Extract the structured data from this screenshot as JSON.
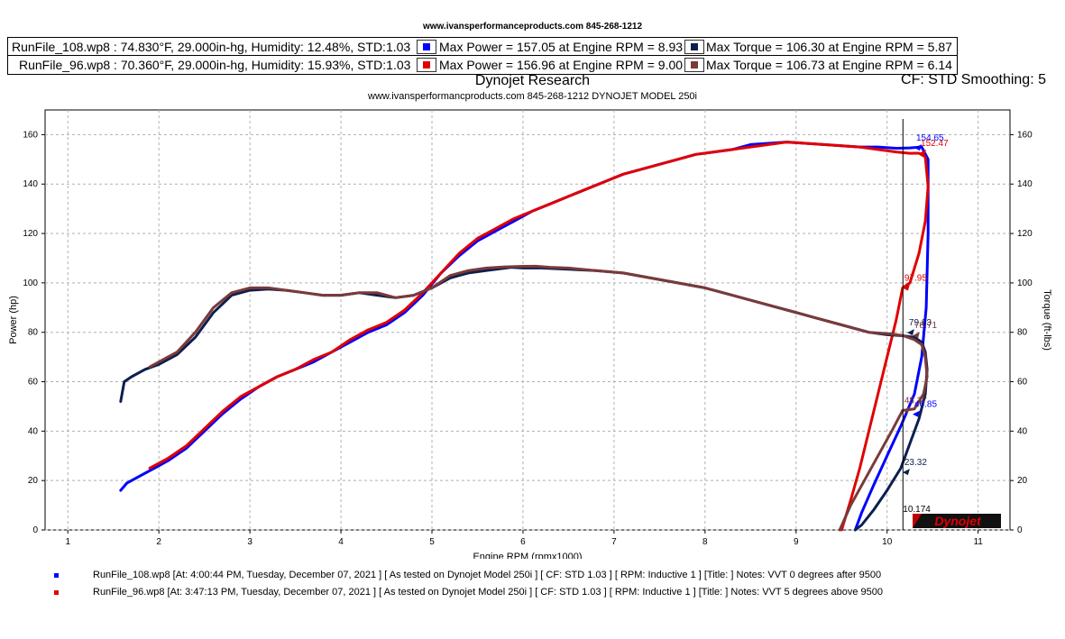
{
  "header": {
    "website": "www.ivansperformanceproducts.com  845-268-1212"
  },
  "legend": {
    "row1": {
      "run": "RunFile_108.wp8 : 74.830°F, 29.000in-hg, Humidity: 12.48%, STD:1.03",
      "power": "Max Power = 157.05 at Engine RPM = 8.93",
      "torque": "Max Torque = 106.30 at Engine RPM = 5.87",
      "power_color": "#0000ff",
      "torque_color": "#0d1f4d"
    },
    "row2": {
      "run": "RunFile_96.wp8 : 70.360°F, 29.000in-hg, Humidity: 15.93%, STD:1.03",
      "power": "Max Power = 156.96 at Engine RPM = 9.00",
      "torque": "Max Torque = 106.73 at Engine RPM = 6.14",
      "power_color": "#e00000",
      "torque_color": "#7a3a3a"
    }
  },
  "chart_title": "Dynojet Research",
  "chart_subtitle": "www.ivansperformancproducts.com  845-268-1212    DYNOJET MODEL 250i",
  "cf_label": "CF: STD Smoothing: 5",
  "footer": {
    "row1": "RunFile_108.wp8 [At: 4:00:44 PM, Tuesday, December 07, 2021 ] [ As tested on Dynojet Model 250i ] [ CF: STD 1.03 ] [ RPM: Inductive 1 ] [Title: ]  Notes: VVT 0 degrees after 9500",
    "row2": "RunFile_96.wp8 [At: 3:47:13 PM, Tuesday, December 07, 2021 ] [ As tested on Dynojet Model 250i ] [ CF: STD 1.03 ] [ RPM: Inductive 1 ] [Title: ]  Notes: VVT 5 degrees above 9500",
    "row1_color": "#0000ff",
    "row2_color": "#e00000"
  },
  "logo_text": "Dynojet",
  "chart_data": {
    "type": "line",
    "title": "Dynojet Research",
    "xlabel": "Engine RPM (rpmx1000)",
    "ylabel": "Power (hp)",
    "y2label": "Torque (ft-lbs)",
    "xlim": [
      0.75,
      11.35
    ],
    "ylim": [
      0,
      170
    ],
    "xticks": [
      "1",
      "2",
      "3",
      "4",
      "5",
      "6",
      "7",
      "8",
      "9",
      "10",
      "11"
    ],
    "yticks": [
      "0",
      "20",
      "40",
      "60",
      "80",
      "100",
      "120",
      "140",
      "160"
    ],
    "cursor_x": 10.174,
    "cursor_label": "10.174",
    "grid": true,
    "series": [
      {
        "name": "RunFile_108.wp8 Power",
        "color": "#0000ff",
        "x": [
          1.58,
          1.65,
          1.8,
          1.95,
          2.1,
          2.3,
          2.5,
          2.7,
          2.9,
          3.1,
          3.3,
          3.5,
          3.7,
          3.9,
          4.1,
          4.3,
          4.5,
          4.7,
          4.9,
          5.1,
          5.3,
          5.5,
          5.7,
          5.9,
          6.1,
          6.3,
          6.5,
          6.7,
          6.9,
          7.1,
          7.3,
          7.5,
          7.7,
          7.9,
          8.1,
          8.3,
          8.5,
          8.7,
          8.9,
          9.1,
          9.3,
          9.5,
          9.7,
          9.9,
          10.1,
          10.25,
          10.38,
          10.45,
          10.45,
          10.43,
          10.38,
          10.3,
          10.15,
          10.0,
          9.85,
          9.72,
          9.65
        ],
        "y": [
          16,
          19,
          22,
          25,
          28,
          33,
          40,
          47,
          53,
          58,
          62,
          65,
          68,
          72,
          76,
          80,
          83,
          88,
          95,
          104,
          111,
          117,
          121,
          125,
          129,
          132,
          135,
          138,
          141,
          144,
          146,
          148,
          150,
          152,
          153,
          154,
          156,
          156.5,
          157,
          156.5,
          156,
          155.5,
          155,
          155,
          154.5,
          154.65,
          155,
          150,
          120,
          90,
          70,
          55,
          42,
          30,
          18,
          7,
          0
        ]
      },
      {
        "name": "RunFile_96.wp8 Power",
        "color": "#e00000",
        "x": [
          1.9,
          2.1,
          2.3,
          2.5,
          2.7,
          2.9,
          3.1,
          3.3,
          3.5,
          3.7,
          3.9,
          4.1,
          4.3,
          4.5,
          4.7,
          4.9,
          5.1,
          5.3,
          5.5,
          5.7,
          5.9,
          6.1,
          6.3,
          6.5,
          6.7,
          6.9,
          7.1,
          7.3,
          7.5,
          7.7,
          7.9,
          8.1,
          8.3,
          8.5,
          8.7,
          8.9,
          9.1,
          9.3,
          9.5,
          9.7,
          9.9,
          10.1,
          10.25,
          10.35,
          10.42,
          10.45,
          10.42,
          10.35,
          10.25,
          10.17,
          10.1,
          10.0,
          9.9,
          9.8,
          9.7,
          9.6,
          9.5
        ],
        "y": [
          25,
          29,
          34,
          41,
          48,
          54,
          58,
          62,
          65,
          69,
          72,
          77,
          81,
          84,
          89,
          96,
          104,
          112,
          118,
          122,
          126,
          129,
          132,
          135,
          138,
          141,
          144,
          146,
          148,
          150,
          152,
          153,
          154,
          155,
          156,
          156.96,
          156.5,
          156,
          155.5,
          155,
          154,
          153,
          152.47,
          152.5,
          151,
          139,
          125,
          112,
          100,
          97.95,
          85,
          70,
          55,
          40,
          25,
          12,
          0
        ]
      },
      {
        "name": "RunFile_108.wp8 Torque",
        "color": "#0d1f4d",
        "x": [
          1.58,
          1.62,
          1.7,
          1.85,
          2.0,
          2.2,
          2.4,
          2.6,
          2.8,
          3.0,
          3.2,
          3.4,
          3.6,
          3.8,
          4.0,
          4.2,
          4.4,
          4.6,
          4.8,
          5.0,
          5.2,
          5.4,
          5.6,
          5.87,
          6.0,
          6.2,
          6.5,
          6.8,
          7.1,
          7.4,
          7.7,
          8.0,
          8.3,
          8.6,
          8.9,
          9.2,
          9.5,
          9.8,
          10.0,
          10.17,
          10.3,
          10.38,
          10.42,
          10.44,
          10.42,
          10.35,
          10.25,
          10.15,
          10.0,
          9.85,
          9.72,
          9.65
        ],
        "y": [
          52,
          60,
          62,
          65,
          67,
          71,
          78,
          88,
          95,
          97,
          97.5,
          97,
          96,
          95,
          95,
          96,
          95,
          94,
          95,
          98,
          102,
          104,
          105,
          106.3,
          106,
          106,
          105.5,
          105,
          104,
          102,
          100,
          98,
          95,
          92,
          89,
          86,
          83,
          80,
          79,
          78.6,
          78,
          76,
          72,
          65,
          55,
          45,
          35,
          25,
          16,
          8,
          2,
          0
        ]
      },
      {
        "name": "RunFile_96.wp8 Torque",
        "color": "#7a3a3a",
        "x": [
          1.9,
          2.0,
          2.2,
          2.4,
          2.6,
          2.8,
          3.0,
          3.2,
          3.4,
          3.6,
          3.8,
          4.0,
          4.2,
          4.4,
          4.6,
          4.8,
          5.0,
          5.2,
          5.4,
          5.6,
          5.8,
          6.0,
          6.14,
          6.3,
          6.5,
          6.8,
          7.1,
          7.4,
          7.7,
          8.0,
          8.3,
          8.6,
          8.9,
          9.2,
          9.5,
          9.8,
          10.0,
          10.17,
          10.3,
          10.38,
          10.42,
          10.44,
          10.4,
          10.3,
          10.17,
          10.05,
          9.9,
          9.75,
          9.6,
          9.48
        ],
        "y": [
          66,
          68,
          72,
          80,
          90,
          96,
          98,
          98,
          97,
          96,
          95,
          95,
          96,
          96,
          94,
          95,
          98,
          103,
          105,
          106,
          106.5,
          106.7,
          106.73,
          106.3,
          106,
          105,
          104,
          102,
          100,
          98,
          95,
          92,
          89,
          86,
          83,
          80,
          79.5,
          78.71,
          77,
          75,
          70,
          62,
          55,
          49,
          48.37,
          40,
          30,
          20,
          10,
          0
        ]
      }
    ],
    "annotations": [
      {
        "text": "154.65",
        "x": 10.3,
        "y": 154.65,
        "color": "#0000ff"
      },
      {
        "text": "152.47",
        "x": 10.35,
        "y": 152.47,
        "color": "#e00000"
      },
      {
        "text": "97.95",
        "x": 10.17,
        "y": 97.95,
        "color": "#e00000"
      },
      {
        "text": "79.83",
        "x": 10.22,
        "y": 79.83,
        "color": "#0d1f4d"
      },
      {
        "text": "78.71",
        "x": 10.28,
        "y": 78.71,
        "color": "#7a3a3a"
      },
      {
        "text": "48.37",
        "x": 10.17,
        "y": 48.37,
        "color": "#7a3a3a"
      },
      {
        "text": "46.85",
        "x": 10.28,
        "y": 46.85,
        "color": "#0000ff"
      },
      {
        "text": "23.32",
        "x": 10.17,
        "y": 23.32,
        "color": "#0d1f4d"
      }
    ]
  }
}
